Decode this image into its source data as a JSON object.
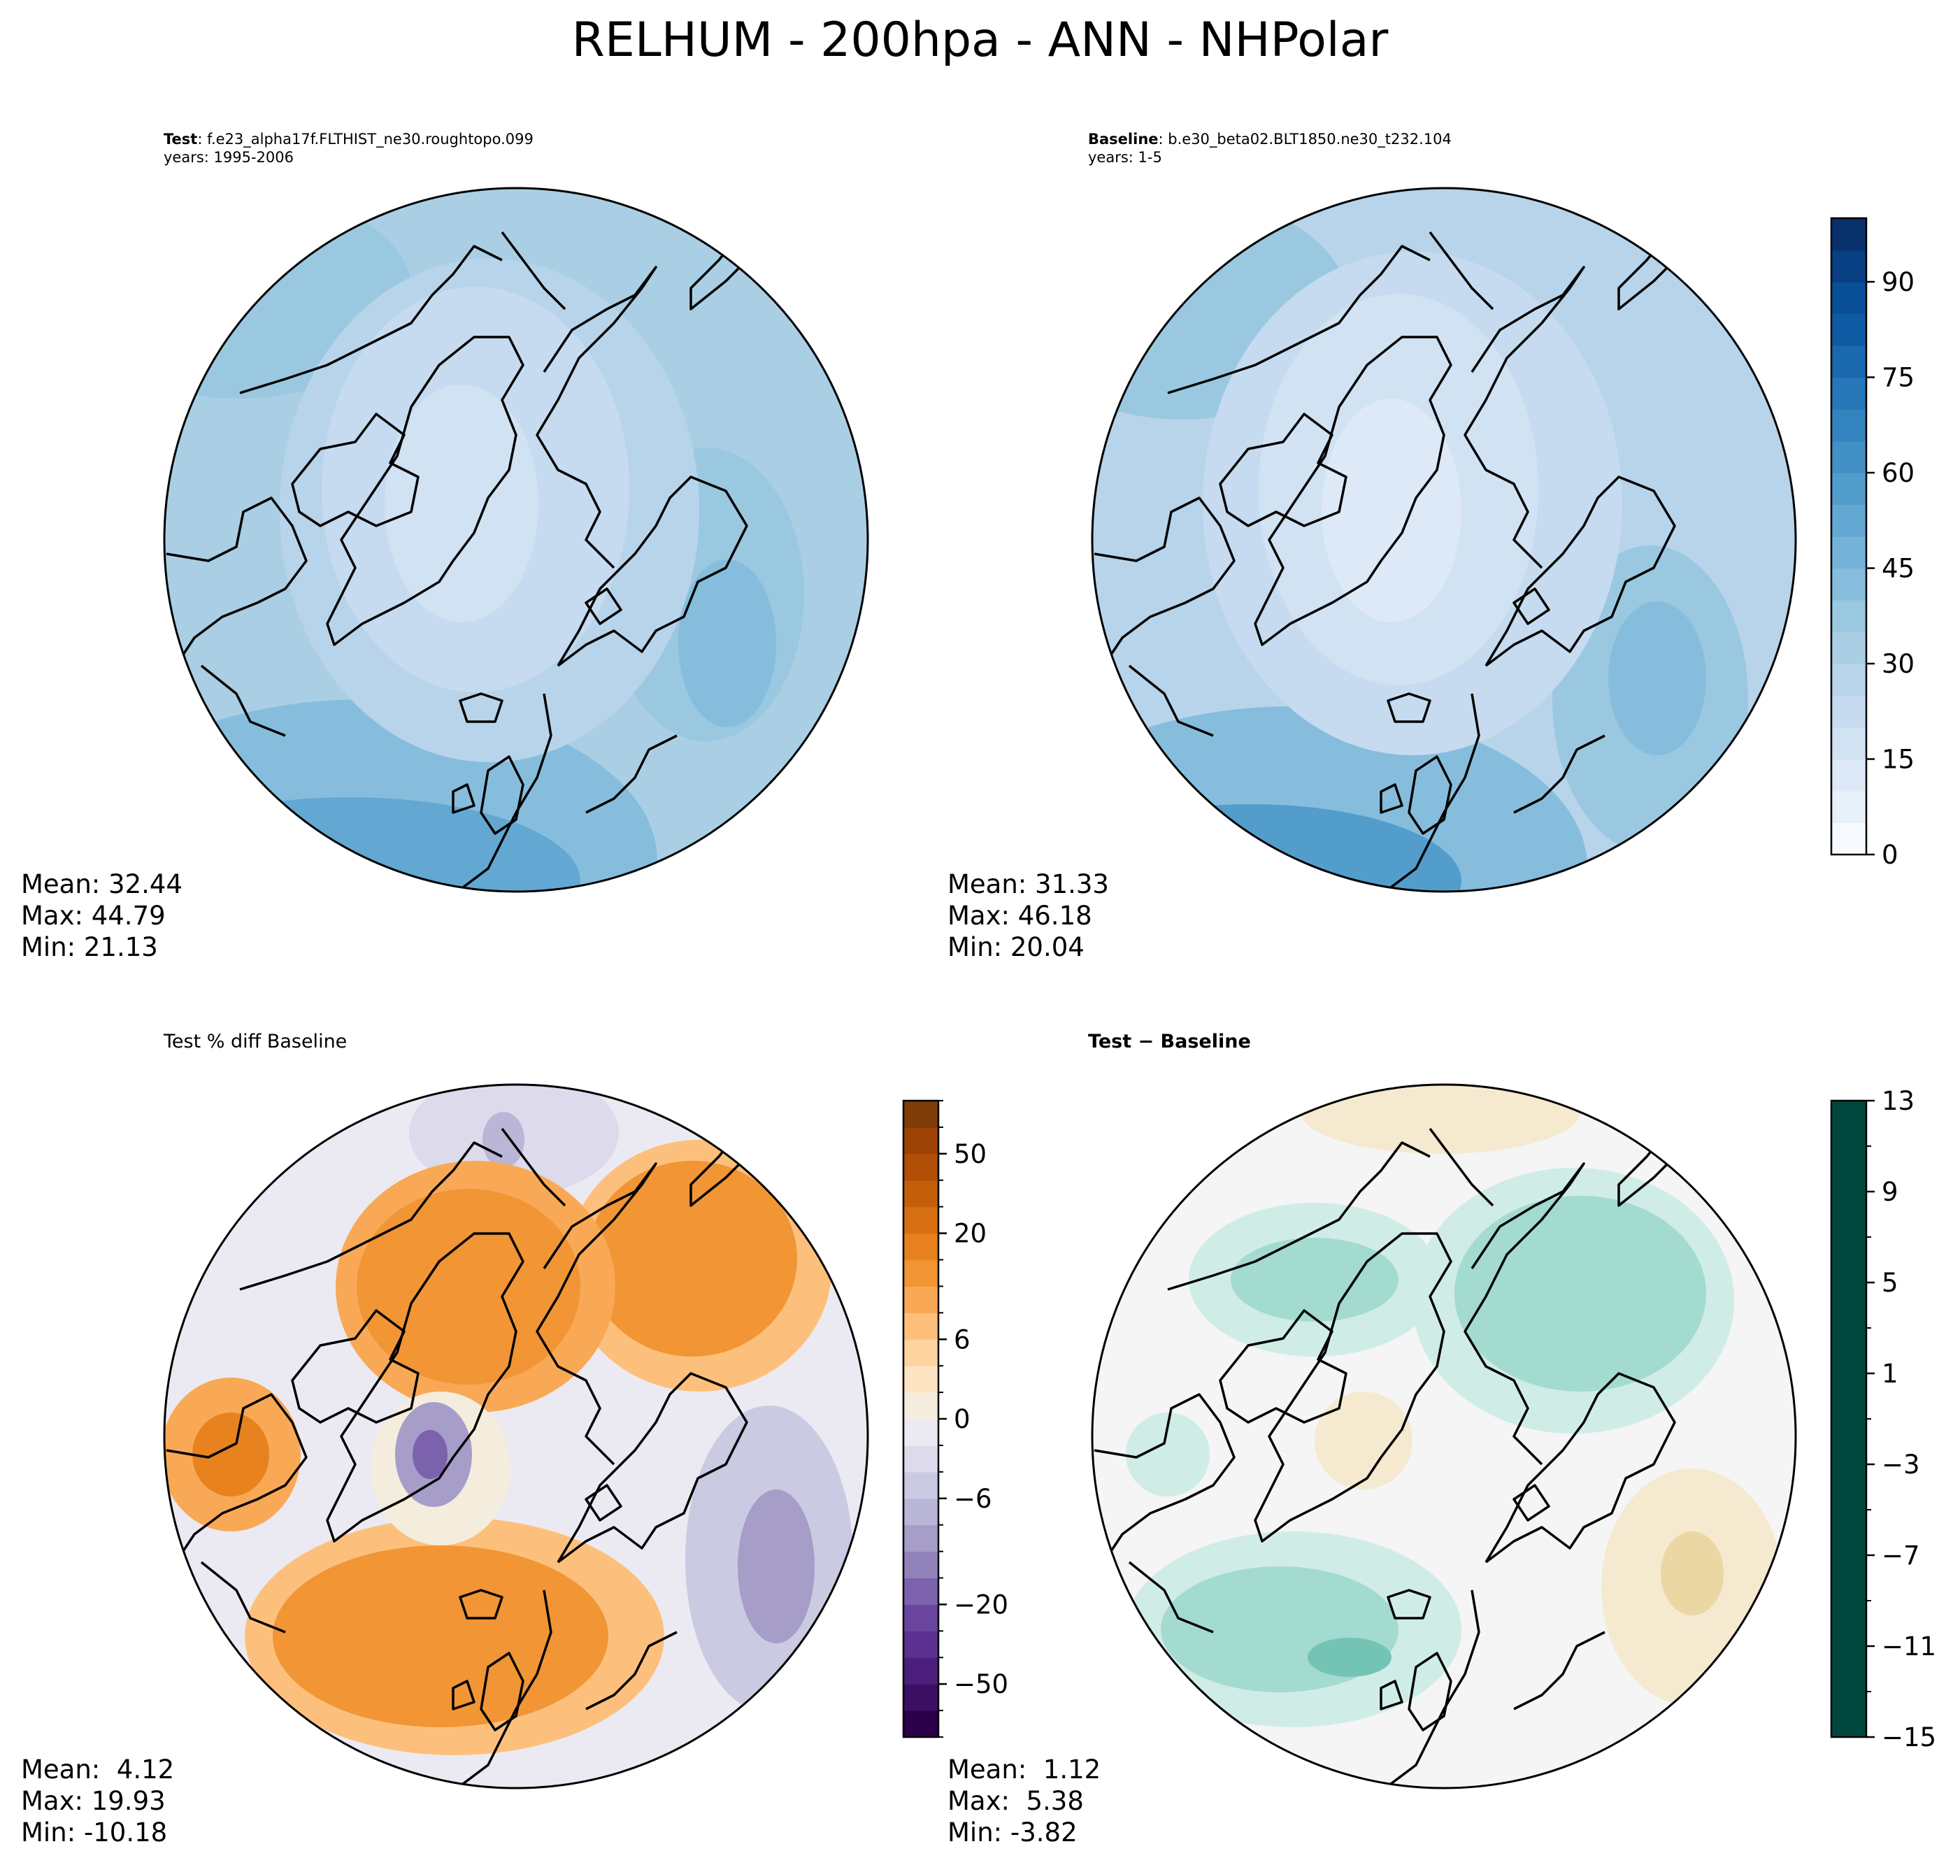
{
  "title": "RELHUM - 200hpa - ANN - NHPolar",
  "chart_data": [
    {
      "type": "heatmap",
      "panel": "test",
      "title_bold": "Test",
      "title_rest": ": f.e23_alpha17f.FLTHIST_ne30.roughtopo.099",
      "subtitle": "years: 1995-2006",
      "projection": "north-polar-stereographic",
      "stats": {
        "mean": "Mean: 32.44",
        "max": "Max: 44.79",
        "min": "Min: 21.13"
      },
      "colormap": "Blues",
      "colorbar": "shared with baseline"
    },
    {
      "type": "heatmap",
      "panel": "baseline",
      "title_bold": "Baseline",
      "title_rest": ": b.e30_beta02.BLT1850.ne30_t232.104",
      "subtitle": "years: 1-5",
      "projection": "north-polar-stereographic",
      "stats": {
        "mean": "Mean: 31.33",
        "max": "Max: 46.18",
        "min": "Min: 20.04"
      },
      "colormap": "Blues",
      "colorbar": {
        "range": [
          0,
          100
        ],
        "tick_labels": [
          "0",
          "15",
          "30",
          "45",
          "60",
          "75",
          "90"
        ],
        "tick_values": [
          0,
          15,
          30,
          45,
          60,
          75,
          90
        ],
        "levels": [
          0,
          5,
          10,
          15,
          20,
          25,
          30,
          35,
          40,
          45,
          50,
          55,
          60,
          65,
          70,
          75,
          80,
          85,
          90,
          95,
          100
        ],
        "colors": [
          "#f7fbff",
          "#e8f1fa",
          "#dde9f6",
          "#d1e2f2",
          "#c6dbef",
          "#b8d4ea",
          "#aacfe5",
          "#9ac8e0",
          "#87bddc",
          "#74b2d8",
          "#63a7d3",
          "#529dcc",
          "#4290c5",
          "#3383be",
          "#2676b8",
          "#1a68ae",
          "#0f5ba3",
          "#084f97",
          "#083f83",
          "#08306b"
        ]
      }
    },
    {
      "type": "heatmap",
      "panel": "pct-diff",
      "title": "Test % diff Baseline",
      "projection": "north-polar-stereographic",
      "stats": {
        "mean": "Mean:  4.12",
        "max": "Max: 19.93",
        "min": "Min: -10.18"
      },
      "colormap": "PuOr_r",
      "colorbar": {
        "tick_labels": [
          "−50",
          "−20",
          "−6",
          "0",
          "6",
          "20",
          "50"
        ],
        "tick_values": [
          -50,
          -20,
          -6,
          0,
          6,
          20,
          50
        ],
        "levels": [
          -100,
          -75,
          -50,
          -40,
          -30,
          -20,
          -15,
          -10,
          -8,
          -6,
          -4,
          -2,
          0,
          2,
          4,
          6,
          8,
          10,
          15,
          20,
          30,
          40,
          50,
          75,
          100
        ],
        "colors": [
          "#2d004b",
          "#3b0f63",
          "#4a1e7a",
          "#5a3190",
          "#6a459f",
          "#7c62ad",
          "#9183ba",
          "#a69dc8",
          "#b9b6d7",
          "#cbcae3",
          "#dcdaeb",
          "#ebeaf2",
          "#f4ecdc",
          "#fde4c3",
          "#fdd3a0",
          "#fdc07c",
          "#f9a956",
          "#f19535",
          "#e7821f",
          "#d66f12",
          "#c55e0b",
          "#b24f07",
          "#9e4306",
          "#7f3b08"
        ]
      }
    },
    {
      "type": "heatmap",
      "panel": "diff",
      "title": "Test − Baseline",
      "projection": "north-polar-stereographic",
      "stats": {
        "mean": "Mean:  1.12",
        "max": "Max:  5.38",
        "min": "Min: -3.82"
      },
      "colormap": "BrBG",
      "colorbar": {
        "range": [
          -15,
          13
        ],
        "tick_labels": [
          "−15",
          "−11",
          "−7",
          "−3",
          "1",
          "5",
          "9",
          "13"
        ],
        "tick_values": [
          -15,
          -11,
          -7,
          -3,
          1,
          5,
          9,
          13
        ],
        "levels": [
          -15,
          -13,
          -11,
          -9,
          -7,
          -5,
          -3,
          -1,
          1,
          3,
          5,
          7,
          9,
          11,
          13
        ],
        "colors": [
          "#543005",
          "#7a4609",
          "#9c5b12",
          "#b77b2c",
          "#cd9b4f",
          "#dfc27d",
          "#ead7a4",
          "#f5ead0",
          "#f4f5f4",
          "#d0ece6",
          "#a3dbd0",
          "#74c4b5",
          "#3f9c93",
          "#1a736a",
          "#00483d"
        ]
      }
    }
  ]
}
